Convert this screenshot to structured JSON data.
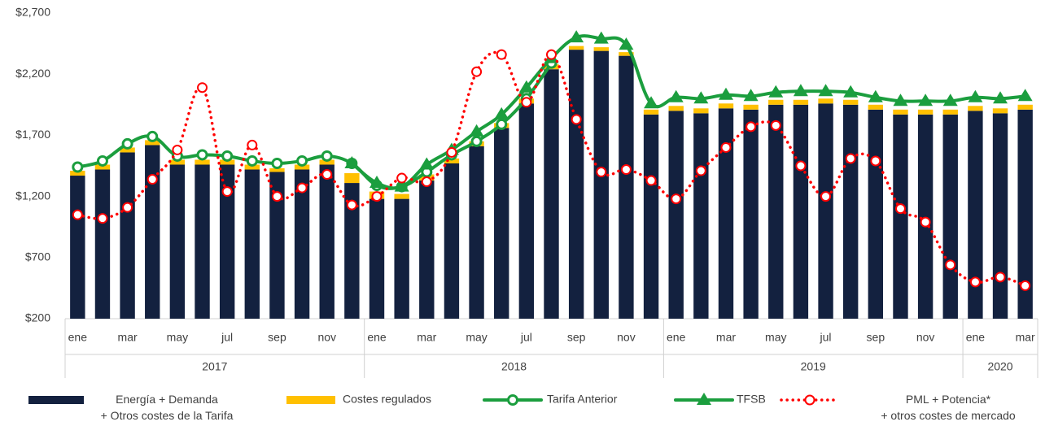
{
  "chart_data": {
    "type": "bar",
    "smooth": true,
    "grid": false,
    "categories": [
      "ene",
      null,
      "mar",
      null,
      "may",
      null,
      "jul",
      null,
      "sep",
      null,
      "nov",
      null,
      "ene",
      null,
      "mar",
      null,
      "may",
      null,
      "jul",
      null,
      "sep",
      null,
      "nov",
      null,
      "ene",
      null,
      "mar",
      null,
      "may",
      null,
      "jul",
      null,
      "sep",
      null,
      "nov",
      null,
      "ene",
      null,
      "mar"
    ],
    "x_groups": [
      "2017",
      "2018",
      "2019",
      "2020"
    ],
    "ylim": [
      200,
      2700
    ],
    "yticks": [
      {
        "value": 200,
        "label": "$200"
      },
      {
        "value": 700,
        "label": "$700"
      },
      {
        "value": 1200,
        "label": "$1,200"
      },
      {
        "value": 1700,
        "label": "$1,700"
      },
      {
        "value": 2200,
        "label": "$2,200"
      },
      {
        "value": 2700,
        "label": "$2,700"
      }
    ],
    "series": [
      {
        "name": "Energía + Demanda\n+ Otros costes de la Tarifa",
        "type": "bar",
        "color": "#13213f",
        "values": [
          1370,
          1420,
          1560,
          1620,
          1460,
          1460,
          1460,
          1420,
          1400,
          1420,
          1460,
          1310,
          1180,
          1180,
          1330,
          1470,
          1610,
          1760,
          1960,
          2240,
          2400,
          2390,
          2350,
          1870,
          1900,
          1880,
          1920,
          1910,
          1950,
          1950,
          1960,
          1950,
          1910,
          1870,
          1870,
          1870,
          1900,
          1880,
          1910
        ]
      },
      {
        "name": "Costes regulados",
        "type": "bar",
        "color": "#ffc000",
        "values": [
          40,
          40,
          40,
          40,
          40,
          40,
          40,
          40,
          30,
          40,
          40,
          80,
          60,
          40,
          50,
          40,
          40,
          40,
          40,
          40,
          30,
          30,
          30,
          40,
          40,
          40,
          40,
          40,
          40,
          40,
          40,
          40,
          40,
          40,
          40,
          40,
          40,
          40,
          40
        ]
      },
      {
        "name": "Tarifa Anterior",
        "type": "line",
        "marker": "circle",
        "color": "#1b9e3e",
        "values": [
          1440,
          1490,
          1630,
          1690,
          1530,
          1540,
          1530,
          1490,
          1470,
          1490,
          1530,
          1470,
          1290,
          1280,
          1400,
          1540,
          1650,
          1790,
          2000,
          2290,
          null,
          null,
          null,
          null,
          null,
          null,
          null,
          null,
          null,
          null,
          null,
          null,
          null,
          null,
          null,
          null,
          null,
          null,
          null
        ]
      },
      {
        "name": "TFSB",
        "type": "line",
        "marker": "triangle",
        "color": "#1b9e3e",
        "values": [
          null,
          null,
          null,
          null,
          null,
          null,
          null,
          null,
          null,
          null,
          null,
          1470,
          1310,
          1280,
          1460,
          1580,
          1730,
          1870,
          2090,
          2330,
          2500,
          2490,
          2440,
          1960,
          2010,
          2000,
          2030,
          2020,
          2050,
          2060,
          2060,
          2050,
          2010,
          1980,
          1980,
          1980,
          2010,
          2000,
          2020
        ]
      },
      {
        "name": "PML + Potencia*\n+ otros costes de mercado",
        "type": "line",
        "marker": "circle",
        "dotted": true,
        "color": "#ff0000",
        "values": [
          1050,
          1020,
          1110,
          1340,
          1580,
          2090,
          1240,
          1620,
          1200,
          1270,
          1380,
          1130,
          1200,
          1350,
          1320,
          1560,
          2220,
          2360,
          1970,
          2360,
          1830,
          1400,
          1420,
          1330,
          1180,
          1410,
          1600,
          1770,
          1780,
          1450,
          1200,
          1510,
          1490,
          1100,
          990,
          640,
          500,
          540,
          470
        ]
      }
    ]
  }
}
